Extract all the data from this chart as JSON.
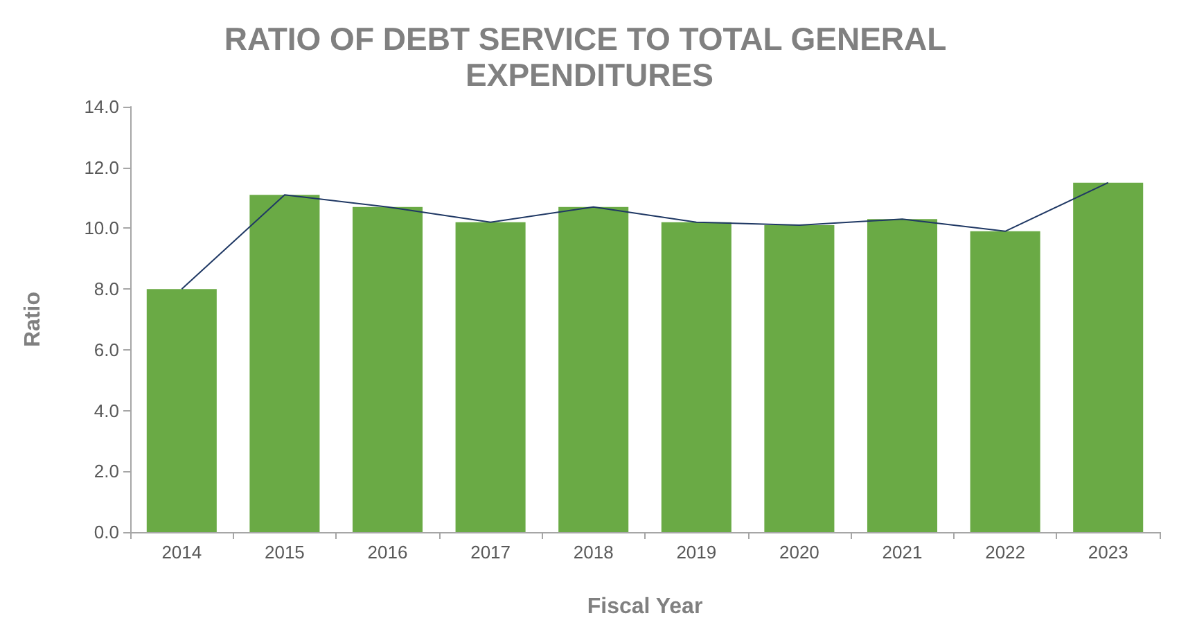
{
  "chart_data": {
    "type": "bar",
    "title": "RATIO OF DEBT SERVICE TO TOTAL GENERAL EXPENDITURES",
    "xlabel": "Fiscal Year",
    "ylabel": "Ratio",
    "categories": [
      "2014",
      "2015",
      "2016",
      "2017",
      "2018",
      "2019",
      "2020",
      "2021",
      "2022",
      "2023"
    ],
    "series": [
      {
        "color": "#6aaa45",
        "values": [
          8.0,
          11.1,
          10.7,
          10.2,
          10.7,
          10.2,
          10.1,
          10.3,
          9.9,
          11.5
        ]
      },
      {
        "type": "line",
        "color": "#1f3864",
        "values": [
          8.0,
          11.1,
          10.7,
          10.2,
          10.7,
          10.2,
          10.1,
          10.3,
          9.9,
          11.5
        ]
      }
    ],
    "ylim": [
      0,
      14
    ],
    "yticks": [
      {
        "value": 0,
        "label": "0.0"
      },
      {
        "value": 2,
        "label": "2.0"
      },
      {
        "value": 4,
        "label": "4.0"
      },
      {
        "value": 6,
        "label": "6.0"
      },
      {
        "value": 8,
        "label": "8.0"
      },
      {
        "value": 10,
        "label": "10.0"
      },
      {
        "value": 12,
        "label": "12.0"
      },
      {
        "value": 14,
        "label": "14.0"
      }
    ],
    "grid": false,
    "marker": "none"
  }
}
